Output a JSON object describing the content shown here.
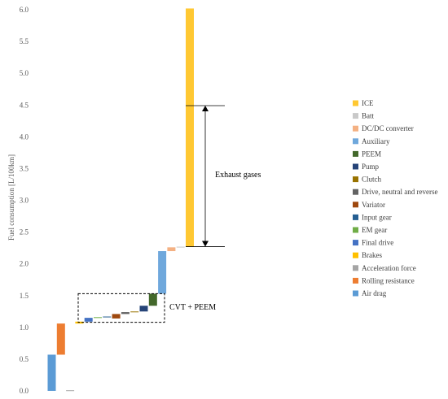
{
  "chart_data": {
    "type": "bar",
    "subtype": "waterfall",
    "ylabel": "Fuel consumption [L/100km]",
    "ylim": [
      0,
      6.0
    ],
    "yticks": [
      "0.0",
      "0.5",
      "1.0",
      "1.5",
      "2.0",
      "2.5",
      "3.0",
      "3.5",
      "4.0",
      "4.5",
      "5.0",
      "5.5",
      "6.0"
    ],
    "grid": false,
    "legend_position": "right",
    "bars": [
      {
        "name": "Air drag",
        "start": 0.0,
        "end": 0.57,
        "color": "#5B9BD5"
      },
      {
        "name": "Rolling resistance",
        "start": 0.57,
        "end": 1.06,
        "color": "#ED7D31"
      },
      {
        "name": "Acceleration force",
        "start": 0.0,
        "end": 0.01,
        "color": "#A5A5A5"
      },
      {
        "name": "Brakes",
        "start": 1.06,
        "end": 1.09,
        "color": "#FFC000"
      },
      {
        "name": "Final drive",
        "start": 1.09,
        "end": 1.15,
        "color": "#4472C4"
      },
      {
        "name": "EM gear",
        "start": 1.15,
        "end": 1.16,
        "color": "#70AD47"
      },
      {
        "name": "Input gear",
        "start": 1.16,
        "end": 1.17,
        "color": "#255E91"
      },
      {
        "name": "Variator",
        "start": 1.14,
        "end": 1.21,
        "color": "#9E480E"
      },
      {
        "name": "Drive, neutral and reverse",
        "start": 1.21,
        "end": 1.24,
        "color": "#636363"
      },
      {
        "name": "Clutch",
        "start": 1.24,
        "end": 1.25,
        "color": "#997300"
      },
      {
        "name": "Pump",
        "start": 1.25,
        "end": 1.34,
        "color": "#264478"
      },
      {
        "name": "PEEM",
        "start": 1.34,
        "end": 1.53,
        "color": "#43682B"
      },
      {
        "name": "Auxiliary",
        "start": 1.53,
        "end": 2.2,
        "color": "#6FA8DC"
      },
      {
        "name": "DC/DC converter",
        "start": 2.2,
        "end": 2.26,
        "color": "#F4B183"
      },
      {
        "name": "Batt",
        "start": 2.26,
        "end": 2.27,
        "color": "#C9C9C9"
      },
      {
        "name": "ICE",
        "start": 2.27,
        "end": 6.02,
        "color": "#FFC832"
      }
    ],
    "legend": [
      "ICE",
      "Batt",
      "DC/DC converter",
      "Auxiliary",
      "PEEM",
      "Pump",
      "Clutch",
      "Drive, neutral and reverse",
      "Variator",
      "Input gear",
      "EM gear",
      "Final drive",
      "Brakes",
      "Acceleration force",
      "Rolling resistance",
      "Air drag"
    ],
    "annotations": {
      "exhaust": {
        "text": "Exhaust gases",
        "from": 2.27,
        "to": 4.49
      },
      "box": {
        "text": "CVT + PEEM",
        "y_from": 1.08,
        "y_to": 1.53
      }
    }
  }
}
